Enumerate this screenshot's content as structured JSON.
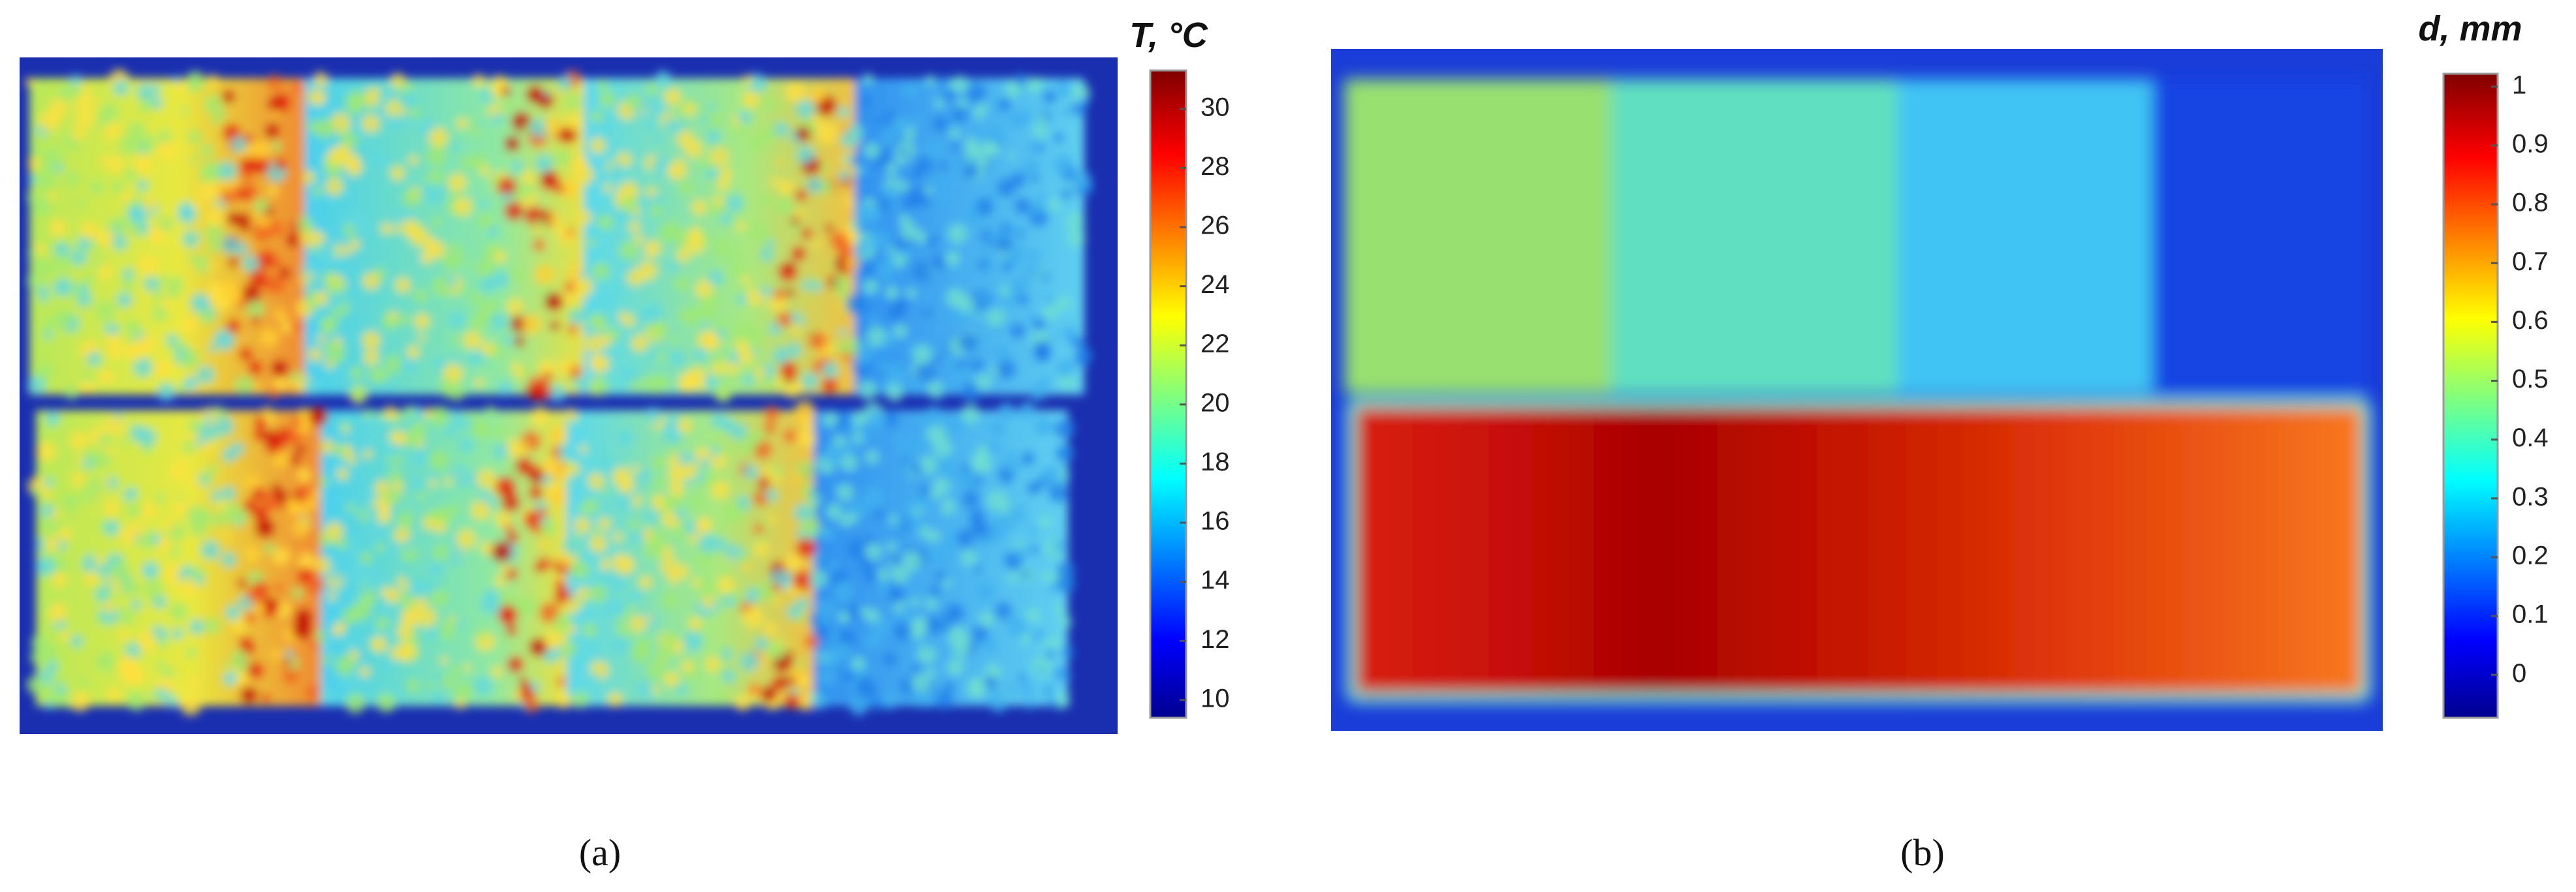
{
  "panels": [
    {
      "caption": "(a)",
      "colorbar": {
        "label": "T, °C",
        "lim": [
          9.4,
          31.3
        ],
        "ticks": [
          10,
          12,
          14,
          16,
          18,
          20,
          22,
          24,
          26,
          28,
          30
        ]
      }
    },
    {
      "caption": "(b)",
      "colorbar": {
        "label": "d, mm",
        "lim": [
          -0.073,
          1.022
        ],
        "ticks": [
          0,
          0.1,
          0.2,
          0.3,
          0.4,
          0.5,
          0.6,
          0.7,
          0.8,
          0.9,
          1
        ]
      }
    }
  ]
}
